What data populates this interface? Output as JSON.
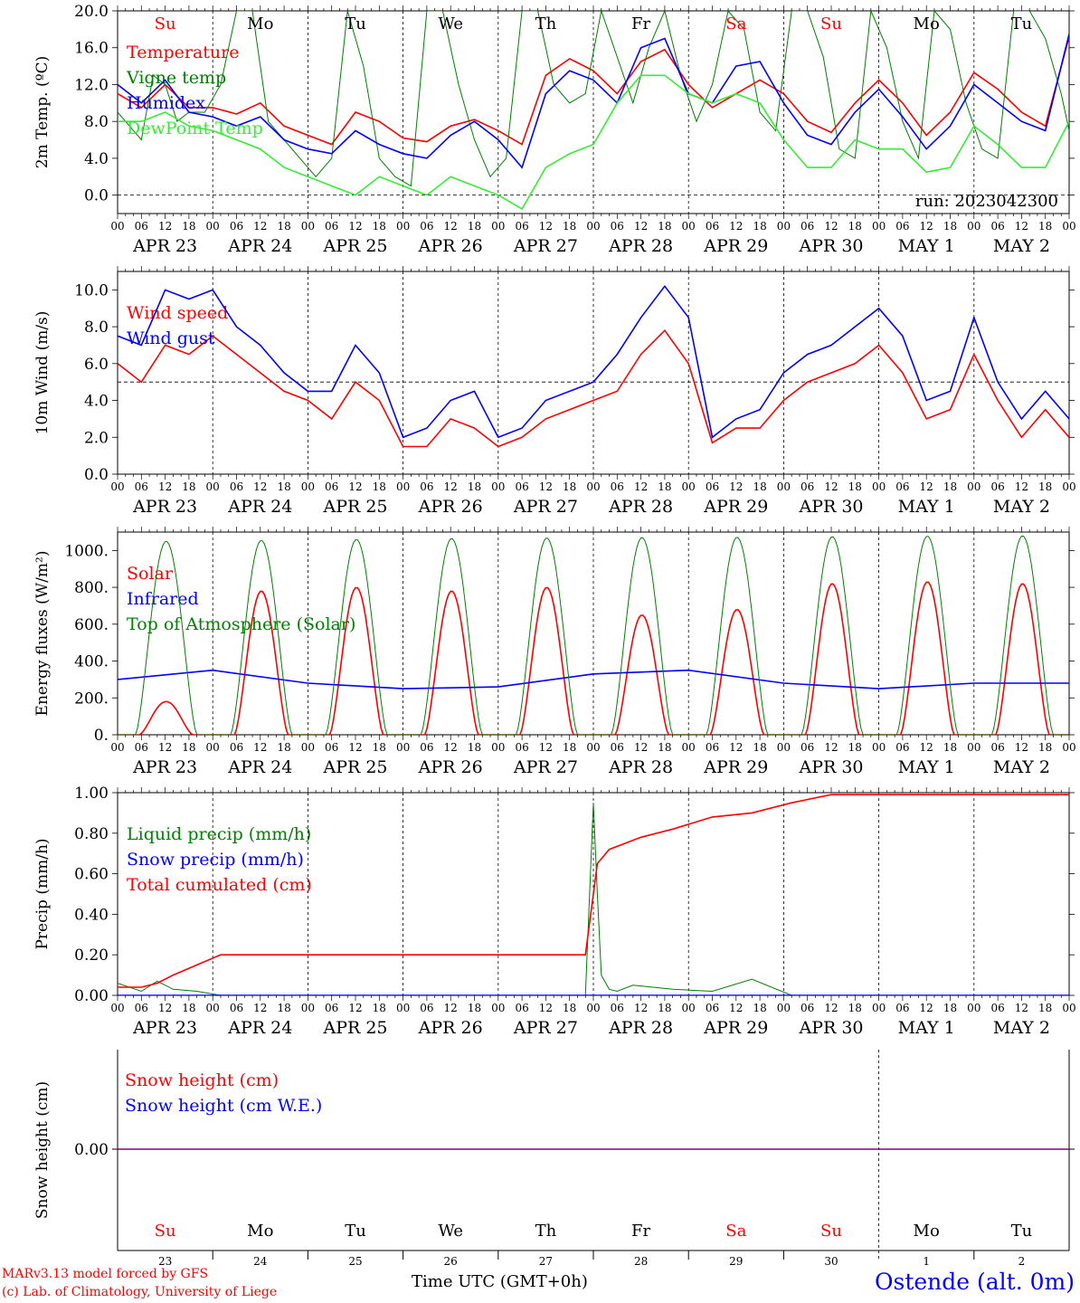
{
  "run_label": "run: 2023042300",
  "weekdays_top": [
    "Su",
    "Mo",
    "Tu",
    "We",
    "Th",
    "Fr",
    "Sa",
    "Su",
    "Mo",
    "Tu"
  ],
  "weekday_colors": [
    "#ff0000",
    "#000000",
    "#000000",
    "#000000",
    "#000000",
    "#000000",
    "#ff0000",
    "#ff0000",
    "#000000",
    "#000000"
  ],
  "dates": [
    "APR 23",
    "APR 24",
    "APR 25",
    "APR 26",
    "APR 27",
    "APR 28",
    "APR 29",
    "APR 30",
    "MAY  1",
    "MAY  2"
  ],
  "hour_ticks": [
    "00",
    "06",
    "12",
    "18"
  ],
  "day_numbers": [
    "23",
    "24",
    "25",
    "26",
    "27",
    "28",
    "29",
    "30",
    "1",
    "2"
  ],
  "colors": {
    "red": "#ff0000",
    "green": "#008000",
    "lightgreen": "#33ee33",
    "blue": "#0000ff",
    "purple": "#800080"
  },
  "chart_data": [
    {
      "type": "line",
      "ylabel": "2m Temp. (ºC)",
      "ylim": [
        -2,
        20
      ],
      "yticks": [
        "0.0",
        "4.0",
        "8.0",
        "12.0",
        "16.0",
        "20.0"
      ],
      "ref_line": 0,
      "x_unit": "hours since APR 23 00 UTC",
      "series": [
        {
          "name": "Temperature",
          "color": "red",
          "x": [
            0,
            6,
            12,
            18,
            24,
            30,
            36,
            42,
            48,
            54,
            60,
            66,
            72,
            78,
            84,
            90,
            96,
            102,
            108,
            114,
            120,
            126,
            132,
            138,
            144,
            150,
            156,
            162,
            168,
            174,
            180,
            186,
            192,
            198,
            204,
            210,
            216,
            222,
            228,
            234,
            240
          ],
          "y": [
            11,
            9.5,
            12,
            9.5,
            9.5,
            8.8,
            10,
            7.5,
            6.5,
            5.5,
            9,
            8,
            6.2,
            5.8,
            7.5,
            8.2,
            7,
            5.5,
            13,
            14.8,
            13.5,
            11,
            14.5,
            15.8,
            12,
            9.5,
            11,
            12.5,
            11,
            8,
            6.8,
            10,
            12.5,
            10,
            6.5,
            9,
            13.3,
            11.5,
            9,
            7.5,
            17.2
          ]
        },
        {
          "name": "Vigne temp",
          "color": "green",
          "x": [
            0,
            6,
            9,
            12,
            15,
            18,
            22,
            26,
            30,
            34,
            38,
            42,
            46,
            50,
            54,
            58,
            62,
            66,
            70,
            74,
            78,
            82,
            86,
            90,
            94,
            98,
            102,
            106,
            110,
            114,
            118,
            122,
            126,
            130,
            134,
            138,
            142,
            146,
            150,
            154,
            158,
            162,
            166,
            170,
            174,
            178,
            182,
            186,
            190,
            194,
            198,
            202,
            206,
            210,
            214,
            218,
            222,
            226,
            230,
            234,
            238,
            240
          ],
          "y": [
            9,
            6,
            13,
            12,
            8,
            9,
            9,
            12,
            20,
            20,
            8,
            6,
            4,
            2,
            4,
            20,
            14,
            4,
            2,
            1,
            20,
            20,
            12,
            6,
            2,
            4,
            20,
            20,
            12,
            10,
            11,
            20,
            15,
            10,
            16,
            20,
            13,
            8,
            12,
            20,
            18,
            9,
            7,
            20,
            20,
            15,
            5,
            4,
            20,
            16,
            8,
            4,
            20,
            18,
            10,
            5,
            4,
            20,
            20,
            17,
            11,
            7
          ]
        },
        {
          "name": "Humidex",
          "color": "blue",
          "x": [
            0,
            6,
            12,
            18,
            24,
            30,
            36,
            42,
            48,
            54,
            60,
            66,
            72,
            78,
            84,
            90,
            96,
            102,
            108,
            114,
            120,
            126,
            132,
            138,
            144,
            150,
            156,
            162,
            168,
            174,
            180,
            186,
            192,
            198,
            204,
            210,
            216,
            222,
            228,
            234,
            240
          ],
          "y": [
            12,
            10,
            12.5,
            9,
            8.5,
            7.5,
            8.5,
            6,
            5,
            4.5,
            7,
            5.5,
            4.5,
            4,
            6.5,
            8,
            6,
            3,
            11,
            13.5,
            12.5,
            10,
            16,
            17,
            11,
            10,
            14,
            14.5,
            10,
            6.5,
            5.5,
            9,
            11.5,
            8.5,
            5,
            7.5,
            12,
            10,
            8,
            7,
            17.5
          ]
        },
        {
          "name": "DewPoint Temp",
          "color": "lightgreen",
          "x": [
            0,
            6,
            12,
            18,
            24,
            30,
            36,
            42,
            48,
            54,
            60,
            66,
            72,
            78,
            84,
            90,
            96,
            102,
            108,
            114,
            120,
            126,
            132,
            138,
            144,
            150,
            156,
            162,
            168,
            174,
            180,
            186,
            192,
            198,
            204,
            210,
            216,
            222,
            228,
            234,
            240
          ],
          "y": [
            8,
            8,
            9,
            7.5,
            7,
            6,
            5,
            3,
            2,
            1,
            0,
            2,
            1,
            0,
            2,
            1,
            0,
            -1.5,
            3,
            4.5,
            5.5,
            10,
            13,
            13,
            11,
            10,
            11,
            10,
            6,
            3,
            3,
            6,
            5,
            5,
            2.5,
            3,
            7.5,
            5.5,
            3,
            3,
            8
          ]
        }
      ]
    },
    {
      "type": "line",
      "ylabel": "10m Wind (m/s)",
      "ylim": [
        0,
        11
      ],
      "yticks": [
        "0.0",
        "2.0",
        "4.0",
        "6.0",
        "8.0",
        "10.0"
      ],
      "ref_line": 5,
      "x_unit": "hours since APR 23 00 UTC",
      "series": [
        {
          "name": "Wind speed",
          "color": "red",
          "x": [
            0,
            6,
            12,
            18,
            24,
            30,
            36,
            42,
            48,
            54,
            60,
            66,
            72,
            78,
            84,
            90,
            96,
            102,
            108,
            114,
            120,
            126,
            132,
            138,
            144,
            150,
            156,
            162,
            168,
            174,
            180,
            186,
            192,
            198,
            204,
            210,
            216,
            222,
            228,
            234,
            240
          ],
          "y": [
            6,
            5,
            7,
            6.5,
            7.5,
            6.5,
            5.5,
            4.5,
            4,
            3,
            5,
            4,
            1.5,
            1.5,
            3,
            2.5,
            1.5,
            2,
            3,
            3.5,
            4,
            4.5,
            6.5,
            7.8,
            6,
            1.7,
            2.5,
            2.5,
            4,
            5,
            5.5,
            6,
            7,
            5.5,
            3,
            3.5,
            6.5,
            4,
            2,
            3.5,
            2
          ]
        },
        {
          "name": "Wind gust",
          "color": "blue",
          "x": [
            0,
            6,
            12,
            18,
            24,
            30,
            36,
            42,
            48,
            54,
            60,
            66,
            72,
            78,
            84,
            90,
            96,
            102,
            108,
            114,
            120,
            126,
            132,
            138,
            144,
            150,
            156,
            162,
            168,
            174,
            180,
            186,
            192,
            198,
            204,
            210,
            216,
            222,
            228,
            234,
            240
          ],
          "y": [
            7.5,
            7,
            10,
            9.5,
            10,
            8,
            7,
            5.5,
            4.5,
            4.5,
            7,
            5.5,
            2,
            2.5,
            4,
            4.5,
            2,
            2.5,
            4,
            4.5,
            5,
            6.5,
            8.5,
            10.2,
            8.5,
            2,
            3,
            3.5,
            5.5,
            6.5,
            7,
            8,
            9,
            7.5,
            4,
            4.5,
            8.5,
            5,
            3,
            4.5,
            3
          ]
        }
      ]
    },
    {
      "type": "line",
      "ylabel": "Energy fluxes (W/m²)",
      "ylim": [
        0,
        1100
      ],
      "yticks": [
        "0.",
        "200.",
        "400.",
        "600.",
        "800.",
        "1000."
      ],
      "x_unit": "hours since APR 23 00 UTC",
      "series": [
        {
          "name": "Solar",
          "color": "red",
          "day_peaks": [
            180,
            780,
            800,
            780,
            800,
            650,
            680,
            820,
            830,
            820
          ]
        },
        {
          "name": "Infrared",
          "color": "blue",
          "x": [
            0,
            24,
            48,
            72,
            96,
            120,
            144,
            168,
            192,
            216,
            240
          ],
          "y": [
            300,
            350,
            280,
            250,
            260,
            330,
            350,
            280,
            250,
            280,
            280
          ]
        },
        {
          "name": "Top of Atmosphere (Solar)",
          "color": "green",
          "day_peaks": [
            1050,
            1055,
            1060,
            1065,
            1068,
            1070,
            1072,
            1075,
            1078,
            1080
          ]
        }
      ]
    },
    {
      "type": "line",
      "ylabel": "Precip (mm/h)",
      "ylim": [
        0,
        1
      ],
      "yticks": [
        "0.00",
        "0.20",
        "0.40",
        "0.60",
        "0.80",
        "1.00"
      ],
      "x_unit": "hours since APR 23 00 UTC",
      "series": [
        {
          "name": "Liquid precip (mm/h)",
          "color": "green",
          "x": [
            0,
            6,
            10,
            14,
            20,
            26,
            110,
            118,
            120,
            121,
            122,
            124,
            126,
            130,
            140,
            150,
            160,
            170,
            180,
            240
          ],
          "y": [
            0.06,
            0.02,
            0.07,
            0.03,
            0.02,
            0,
            0,
            0,
            0.95,
            0.5,
            0.1,
            0.03,
            0.02,
            0.05,
            0.03,
            0.02,
            0.08,
            0,
            0,
            0
          ]
        },
        {
          "name": "Snow precip (mm/h)",
          "color": "blue",
          "x": [
            0,
            240
          ],
          "y": [
            0,
            0
          ]
        },
        {
          "name": "Total cumulated (cm)",
          "color": "red",
          "x": [
            0,
            6,
            10,
            14,
            20,
            26,
            36,
            60,
            90,
            110,
            118,
            121,
            124,
            128,
            132,
            140,
            150,
            160,
            170,
            180,
            200,
            240
          ],
          "y": [
            0.04,
            0.04,
            0.06,
            0.1,
            0.15,
            0.2,
            0.2,
            0.2,
            0.2,
            0.2,
            0.2,
            0.65,
            0.72,
            0.75,
            0.78,
            0.82,
            0.88,
            0.9,
            0.95,
            0.99,
            0.99,
            0.99
          ]
        }
      ]
    },
    {
      "type": "line",
      "ylabel": "Snow height (cm)",
      "ytick_label": "0.00",
      "series": [
        {
          "name": "Snow height (cm)",
          "color": "red"
        },
        {
          "name": "Snow height (cm W.E.)",
          "color": "blue"
        }
      ],
      "values": [
        0.0
      ]
    }
  ],
  "footer": {
    "model": "MARv3.13 model forced by GFS",
    "lab": "(c) Lab. of Climatology, University of Liege",
    "xaxis_label": "Time UTC (GMT+0h)",
    "xaxis_overlap": "APR",
    "station": "Ostende (alt. 0m)"
  }
}
